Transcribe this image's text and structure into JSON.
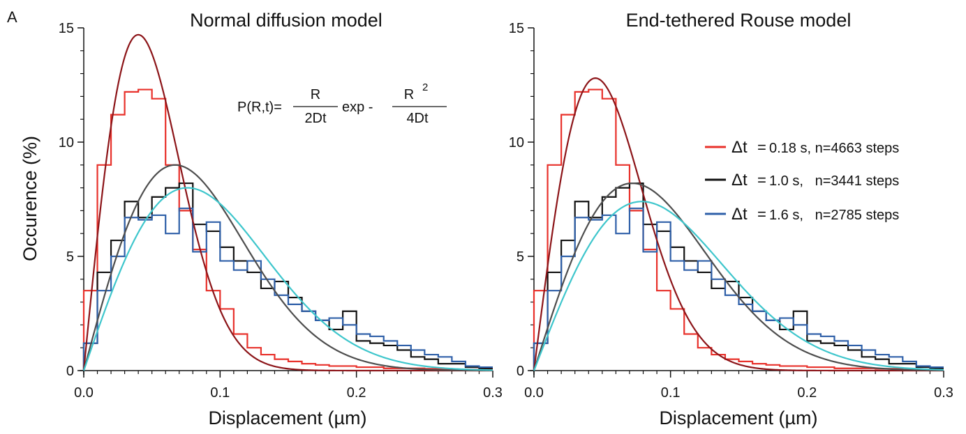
{
  "panel_label": "A",
  "formula": {
    "lhs": "P(R,t)=",
    "num1": "R",
    "den1": "2Dt",
    "mid": "exp -",
    "num2": "R",
    "num2_sup": "2",
    "den2": "4Dt"
  },
  "colors": {
    "red_hist": "#e8302a",
    "black_hist": "#111111",
    "blue_hist": "#2e5fa8",
    "red_fit": "#8c1418",
    "black_fit": "#4d4d4d",
    "blue_fit": "#3ec6cc"
  },
  "chart_data": [
    {
      "type": "line",
      "title": "Normal diffusion model",
      "xlabel": "Displacement (µm)",
      "ylabel": "Occurence (%)",
      "xlim": [
        0,
        0.3
      ],
      "ylim": [
        0,
        15
      ],
      "xticks": [
        "0.0",
        "0.1",
        "0.2",
        "0.3"
      ],
      "yticks": [
        "0",
        "5",
        "10",
        "15"
      ],
      "grid": false,
      "bin_width": 0.01,
      "histograms": [
        {
          "color_key": "red_hist",
          "values": [
            3.5,
            9.0,
            11.2,
            12.2,
            12.3,
            11.9,
            9.0,
            7.0,
            5.3,
            3.5,
            2.7,
            1.6,
            1.0,
            0.7,
            0.5,
            0.4,
            0.3,
            0.25,
            0.2,
            0.2,
            0.15,
            0.15,
            0.1,
            0.1,
            0.1,
            0.08,
            0.08,
            0.05,
            0.05,
            0.05
          ]
        },
        {
          "color_key": "black_hist",
          "values": [
            1.2,
            4.3,
            5.7,
            7.4,
            6.7,
            7.6,
            8.0,
            8.2,
            6.4,
            6.1,
            5.4,
            4.8,
            4.3,
            3.6,
            3.9,
            3.2,
            2.6,
            2.2,
            1.8,
            2.6,
            1.3,
            1.2,
            1.1,
            0.9,
            0.6,
            0.5,
            0.3,
            0.3,
            0.15,
            0.1
          ]
        },
        {
          "color_key": "blue_hist",
          "values": [
            1.2,
            3.5,
            5.0,
            6.7,
            6.6,
            6.8,
            6.0,
            7.1,
            5.2,
            6.5,
            4.8,
            4.4,
            4.8,
            4.0,
            3.3,
            2.9,
            2.6,
            2.2,
            2.3,
            2.0,
            1.6,
            1.5,
            1.3,
            1.1,
            0.9,
            0.7,
            0.6,
            0.4,
            0.2,
            0.15
          ]
        }
      ],
      "fits": [
        {
          "color_key": "red_fit",
          "peak_x": 0.04,
          "peak_y": 14.7
        },
        {
          "color_key": "black_fit",
          "peak_x": 0.067,
          "peak_y": 9.0
        },
        {
          "color_key": "blue_fit",
          "peak_x": 0.076,
          "peak_y": 8.0
        }
      ]
    },
    {
      "type": "line",
      "title": "End-tethered Rouse model",
      "xlabel": "Displacement (µm)",
      "ylabel": "",
      "xlim": [
        0,
        0.3
      ],
      "ylim": [
        0,
        15
      ],
      "xticks": [
        "0.0",
        "0.1",
        "0.2",
        "0.3"
      ],
      "yticks": [
        "0",
        "5",
        "10",
        "15"
      ],
      "grid": false,
      "bin_width": 0.01,
      "histograms": [
        {
          "color_key": "red_hist",
          "values": [
            3.5,
            9.0,
            11.2,
            12.2,
            12.3,
            11.9,
            9.0,
            7.0,
            5.3,
            3.5,
            2.7,
            1.6,
            1.0,
            0.7,
            0.5,
            0.4,
            0.3,
            0.25,
            0.2,
            0.2,
            0.15,
            0.15,
            0.1,
            0.1,
            0.1,
            0.08,
            0.08,
            0.05,
            0.05,
            0.05
          ]
        },
        {
          "color_key": "black_hist",
          "values": [
            1.2,
            4.3,
            5.7,
            7.4,
            6.7,
            7.6,
            8.0,
            8.2,
            6.4,
            6.1,
            5.4,
            4.8,
            4.3,
            3.6,
            3.9,
            3.2,
            2.6,
            2.2,
            1.8,
            2.6,
            1.3,
            1.2,
            1.1,
            0.9,
            0.6,
            0.5,
            0.3,
            0.3,
            0.15,
            0.1
          ]
        },
        {
          "color_key": "blue_hist",
          "values": [
            1.2,
            3.5,
            5.0,
            6.7,
            6.6,
            6.8,
            6.0,
            7.1,
            5.2,
            6.5,
            4.8,
            4.4,
            4.8,
            4.0,
            3.3,
            2.9,
            2.6,
            2.2,
            2.3,
            2.0,
            1.6,
            1.5,
            1.3,
            1.1,
            0.9,
            0.7,
            0.6,
            0.4,
            0.2,
            0.15
          ]
        }
      ],
      "fits": [
        {
          "color_key": "red_fit",
          "peak_x": 0.045,
          "peak_y": 12.8
        },
        {
          "color_key": "black_fit",
          "peak_x": 0.072,
          "peak_y": 8.2
        },
        {
          "color_key": "blue_fit",
          "peak_x": 0.079,
          "peak_y": 7.4
        }
      ],
      "legend": [
        {
          "symbol": "Δt",
          "eq": "=",
          "text": "0.18 s, n=4663 steps",
          "color_key": "red_hist"
        },
        {
          "symbol": "Δt",
          "eq": "=",
          "text": "1.0 s,   n=3441 steps",
          "color_key": "black_hist"
        },
        {
          "symbol": "Δt",
          "eq": "=",
          "text": "1.6 s,   n=2785 steps",
          "color_key": "blue_hist"
        }
      ]
    }
  ]
}
